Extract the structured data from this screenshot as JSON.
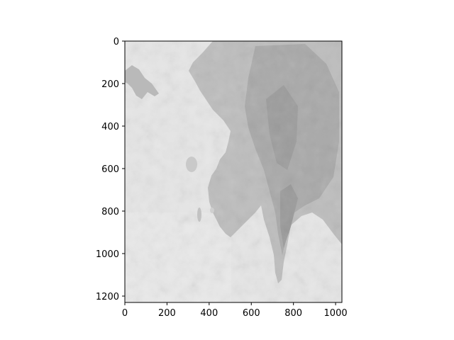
{
  "chart_data": {
    "type": "heatmap",
    "colormap": "gray",
    "title": "",
    "xlabel": "",
    "ylabel": "",
    "x_ticks": [
      "0",
      "200",
      "400",
      "600",
      "800",
      "1000"
    ],
    "y_ticks": [
      "0",
      "200",
      "400",
      "600",
      "800",
      "1000",
      "1200"
    ],
    "xlim": [
      0,
      1030
    ],
    "ylim": [
      1230,
      0
    ],
    "image_description": "Grayscale satellite image of a peninsula landmass (right side) with sea (left side) and a small island at upper-left"
  }
}
